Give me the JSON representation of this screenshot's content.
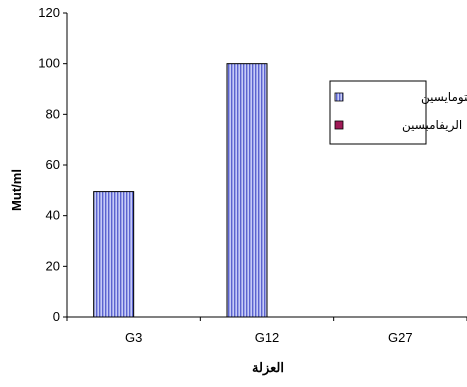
{
  "chart_data": {
    "type": "bar",
    "categories": [
      "G3",
      "G12",
      "G27"
    ],
    "series": [
      {
        "name": "الستربتومايسين",
        "values": [
          49.5,
          100,
          0
        ],
        "color": "#9aa3ef",
        "pattern": "vertical-stripes"
      },
      {
        "name": "الريفامبسين",
        "values": [
          0,
          0,
          0
        ],
        "color": "#a01a57",
        "pattern": "solid"
      }
    ],
    "xlabel": "العزلة",
    "ylabel": "Mut/ml",
    "ylim": [
      0,
      120
    ],
    "yticks": [
      0,
      20,
      40,
      60,
      80,
      100,
      120
    ],
    "grid": false,
    "legend_position": "right"
  }
}
